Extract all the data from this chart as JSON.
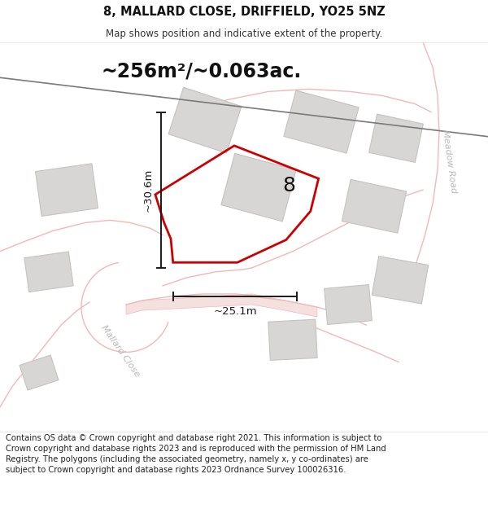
{
  "title": "8, MALLARD CLOSE, DRIFFIELD, YO25 5NZ",
  "subtitle": "Map shows position and indicative extent of the property.",
  "area_label": "~256m²/~0.063ac.",
  "plot_number": "8",
  "dim_height_label": "~30.6m",
  "dim_width_label": "~25.1m",
  "bg_color": "#f8f6f6",
  "building_color": "#d8d5d5",
  "building_edge": "#c5c2c2",
  "plot_edge": "#cc0000",
  "plot_fill": "none",
  "dim_color": "#1a1a1a",
  "road_line_color": "#f0b8b8",
  "road_fill_color": "#fae8e8",
  "dark_road_color": "#7a7a7a",
  "road_label_color": "#b8b8b8",
  "title_fontsize": 10.5,
  "subtitle_fontsize": 8.5,
  "area_fontsize": 17,
  "plot_num_fontsize": 18,
  "dim_fontsize": 9.5,
  "road_label_fontsize": 8,
  "footer_text": "Contains OS data © Crown copyright and database right 2021. This information is subject to Crown copyright and database rights 2023 and is reproduced with the permission of HM Land Registry. The polygons (including the associated geometry, namely x, y co-ordinates) are subject to Crown copyright and database rights 2023 Ordnance Survey 100026316.",
  "footer_fontsize": 7.2
}
